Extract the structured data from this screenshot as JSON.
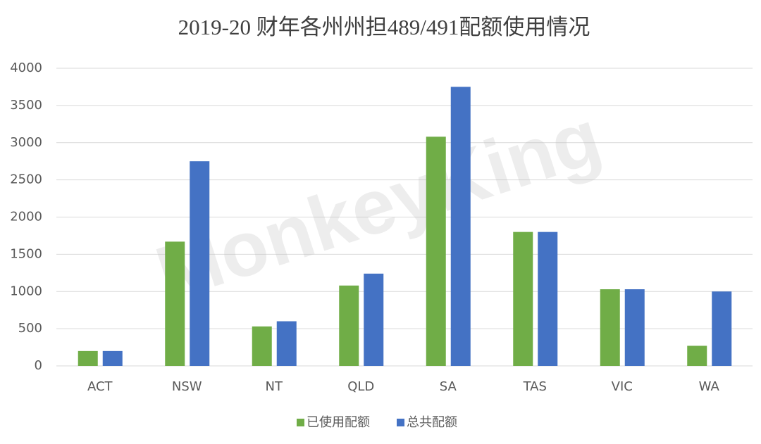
{
  "chart_data": {
    "type": "bar",
    "title": "2019-20 财年各州州担489/491配额使用情况",
    "categories": [
      "ACT",
      "NSW",
      "NT",
      "QLD",
      "SA",
      "TAS",
      "VIC",
      "WA"
    ],
    "series": [
      {
        "name": "已使用配额",
        "color": "#70ad47",
        "values": [
          200,
          1670,
          530,
          1080,
          3080,
          1800,
          1030,
          270
        ]
      },
      {
        "name": "总共配额",
        "color": "#4472c4",
        "values": [
          200,
          2750,
          600,
          1240,
          3750,
          1800,
          1030,
          1000
        ]
      }
    ],
    "ylim": [
      0,
      4000
    ],
    "yticks": [
      0,
      500,
      1000,
      1500,
      2000,
      2500,
      3000,
      3500,
      4000
    ],
    "grid": true,
    "legend": "bottom",
    "watermark": "MonkeyKing"
  }
}
